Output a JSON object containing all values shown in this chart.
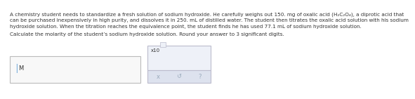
{
  "background_color": "#ffffff",
  "text_color": "#333333",
  "paragraph_line1": "A chemistry student needs to standardize a fresh solution of sodium hydroxide. He carefully weighs out 150. mg of oxalic acid (H₂C₂O₄), a diprotic acid that",
  "paragraph_line2": "can be purchased inexpensively in high purity, and dissolves it in 250. mL of distilled water. The student then titrates the oxalic acid solution with his sodium",
  "paragraph_line3": "hydroxide solution. When the titration reaches the equivalence point, the student finds he has used 77.1 mL of sodium hydroxide solution.",
  "instruction_text": "Calculate the molarity of the student’s sodium hydroxide solution. Round your answer to 3 significant digits.",
  "label_M": "M",
  "cursor_color": "#5b9bd5",
  "input_box_color": "#f8f8f8",
  "input_box_border": "#bbbbbb",
  "answer_box_color": "#eef1f8",
  "answer_box_border": "#bbbbcc",
  "answer_box_bottom_color": "#dde2ee",
  "x10_text": "x10",
  "superscript_char": "□",
  "button_x": "x",
  "button_undo": "↺",
  "button_help": "?",
  "button_color": "#99aabb"
}
